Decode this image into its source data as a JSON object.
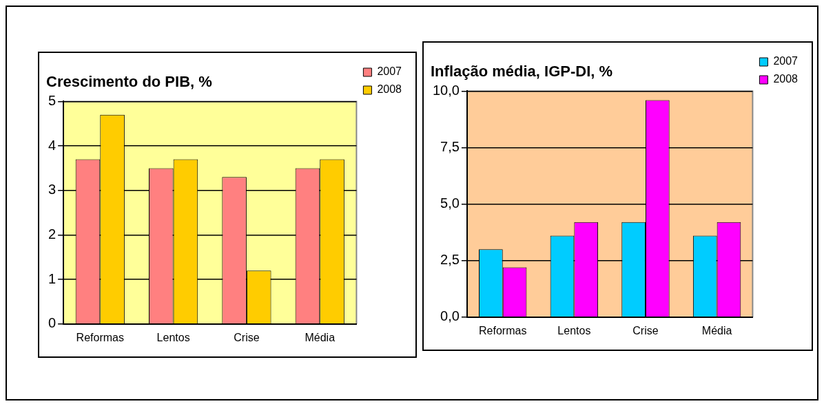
{
  "chart_data": [
    {
      "type": "bar",
      "title": "Crescimento do PIB, %",
      "categories": [
        "Reformas",
        "Lentos",
        "Crise",
        "Média"
      ],
      "series": [
        {
          "name": "2007",
          "color": "#ff8080",
          "values": [
            3.7,
            3.5,
            3.3,
            3.5
          ]
        },
        {
          "name": "2008",
          "color": "#ffcc00",
          "values": [
            4.7,
            3.7,
            1.2,
            3.7
          ]
        }
      ],
      "ylim": [
        0,
        5
      ],
      "yticks": [
        0,
        1,
        2,
        3,
        4,
        5
      ],
      "grid": "y",
      "legend": "top right"
    },
    {
      "type": "bar",
      "title": "Inflação média, IGP-DI, %",
      "categories": [
        "Reformas",
        "Lentos",
        "Crise",
        "Média"
      ],
      "series": [
        {
          "name": "2007",
          "color": "#00ccff",
          "values": [
            3.0,
            3.6,
            4.2,
            3.6
          ]
        },
        {
          "name": "2008",
          "color": "#ff00ff",
          "values": [
            2.2,
            4.2,
            9.6,
            4.2
          ]
        }
      ],
      "ylim": [
        0,
        10
      ],
      "yticks": [
        {
          "value": 0,
          "label": "0,0"
        },
        {
          "value": 2.5,
          "label": "2,5"
        },
        {
          "value": 5,
          "label": "5,0"
        },
        {
          "value": 7.5,
          "label": "7,5"
        },
        {
          "value": 10,
          "label": "10,0"
        }
      ],
      "grid": "y",
      "legend": "top right"
    }
  ]
}
